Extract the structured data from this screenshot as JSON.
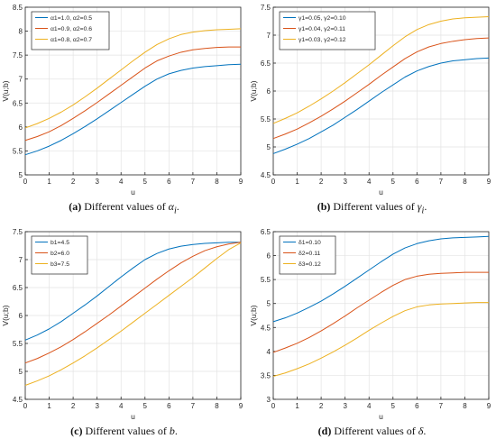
{
  "colors": {
    "blue": "#0072BD",
    "orange": "#D95319",
    "yellow": "#EDB120"
  },
  "panels": [
    {
      "caption": {
        "letter": "a",
        "text": "Different values of ",
        "symbol": "α",
        "sub": "i"
      }
    },
    {
      "caption": {
        "letter": "b",
        "text": "Different values of ",
        "symbol": "γ",
        "sub": "i"
      }
    },
    {
      "caption": {
        "letter": "c",
        "text": "Different values of ",
        "symbol": "b",
        "sub": ""
      }
    },
    {
      "caption": {
        "letter": "d",
        "text": "Different values of ",
        "symbol": "δ",
        "sub": ""
      }
    }
  ],
  "chart_data": [
    {
      "type": "line",
      "xlabel": "u",
      "ylabel": "V(u;b)",
      "xlim": [
        0,
        9
      ],
      "ylim": [
        5,
        8.5
      ],
      "xticks": [
        0,
        1,
        2,
        3,
        4,
        5,
        6,
        7,
        8,
        9
      ],
      "yticks": [
        5,
        5.5,
        6,
        6.5,
        7,
        7.5,
        8,
        8.5
      ],
      "grid": true,
      "legend_position": "top-left",
      "x": [
        0,
        0.5,
        1,
        1.5,
        2,
        2.5,
        3,
        3.5,
        4,
        4.5,
        5,
        5.5,
        6,
        6.5,
        7,
        7.5,
        8,
        8.5,
        9
      ],
      "series": [
        {
          "name": "α1=1.0, α2=0.5",
          "color": "blue",
          "values": [
            5.42,
            5.5,
            5.6,
            5.72,
            5.86,
            6.01,
            6.17,
            6.34,
            6.51,
            6.68,
            6.85,
            7.0,
            7.11,
            7.18,
            7.23,
            7.26,
            7.28,
            7.3,
            7.31
          ]
        },
        {
          "name": "α1=0.9, α2=0.6",
          "color": "orange",
          "values": [
            5.72,
            5.8,
            5.9,
            6.03,
            6.18,
            6.34,
            6.51,
            6.69,
            6.87,
            7.05,
            7.23,
            7.38,
            7.48,
            7.56,
            7.61,
            7.64,
            7.66,
            7.67,
            7.67
          ]
        },
        {
          "name": "α1=0.8, α2=0.7",
          "color": "yellow",
          "values": [
            5.98,
            6.07,
            6.18,
            6.31,
            6.46,
            6.63,
            6.81,
            7.0,
            7.19,
            7.38,
            7.56,
            7.72,
            7.84,
            7.93,
            7.98,
            8.01,
            8.03,
            8.04,
            8.05
          ]
        }
      ]
    },
    {
      "type": "line",
      "xlabel": "u",
      "ylabel": "V(u;b)",
      "xlim": [
        0,
        9
      ],
      "ylim": [
        4.5,
        7.5
      ],
      "xticks": [
        0,
        1,
        2,
        3,
        4,
        5,
        6,
        7,
        8,
        9
      ],
      "yticks": [
        4.5,
        5,
        5.5,
        6,
        6.5,
        7,
        7.5
      ],
      "grid": true,
      "legend_position": "top-left",
      "x": [
        0,
        0.5,
        1,
        1.5,
        2,
        2.5,
        3,
        3.5,
        4,
        4.5,
        5,
        5.5,
        6,
        6.5,
        7,
        7.5,
        8,
        8.5,
        9
      ],
      "series": [
        {
          "name": "γ1=0.05, γ2=0.10",
          "color": "blue",
          "values": [
            4.88,
            4.96,
            5.05,
            5.15,
            5.27,
            5.39,
            5.53,
            5.67,
            5.82,
            5.97,
            6.11,
            6.25,
            6.36,
            6.44,
            6.5,
            6.54,
            6.56,
            6.58,
            6.59
          ]
        },
        {
          "name": "γ1=0.04, γ2=0.11",
          "color": "orange",
          "values": [
            5.15,
            5.23,
            5.32,
            5.43,
            5.55,
            5.68,
            5.82,
            5.97,
            6.12,
            6.28,
            6.43,
            6.58,
            6.7,
            6.79,
            6.85,
            6.89,
            6.92,
            6.94,
            6.95
          ]
        },
        {
          "name": "γ1=0.03, γ2=0.12",
          "color": "yellow",
          "values": [
            5.42,
            5.51,
            5.61,
            5.73,
            5.86,
            6.0,
            6.15,
            6.31,
            6.47,
            6.64,
            6.81,
            6.97,
            7.1,
            7.19,
            7.25,
            7.29,
            7.31,
            7.32,
            7.33
          ]
        }
      ]
    },
    {
      "type": "line",
      "xlabel": "u",
      "ylabel": "V(u;b)",
      "xlim": [
        0,
        9
      ],
      "ylim": [
        4.5,
        7.5
      ],
      "xticks": [
        0,
        1,
        2,
        3,
        4,
        5,
        6,
        7,
        8,
        9
      ],
      "yticks": [
        4.5,
        5,
        5.5,
        6,
        6.5,
        7,
        7.5
      ],
      "grid": true,
      "legend_position": "top-left",
      "x": [
        0,
        0.5,
        1,
        1.5,
        2,
        2.5,
        3,
        3.5,
        4,
        4.5,
        5,
        5.5,
        6,
        6.5,
        7,
        7.5,
        8,
        8.5,
        9
      ],
      "series": [
        {
          "name": "b1=4.5",
          "color": "blue",
          "values": [
            5.56,
            5.65,
            5.76,
            5.89,
            6.04,
            6.19,
            6.35,
            6.52,
            6.69,
            6.85,
            7.0,
            7.11,
            7.19,
            7.24,
            7.27,
            7.29,
            7.3,
            7.31,
            7.31
          ]
        },
        {
          "name": "b2=6.0",
          "color": "orange",
          "values": [
            5.15,
            5.23,
            5.33,
            5.44,
            5.57,
            5.71,
            5.86,
            6.01,
            6.17,
            6.33,
            6.49,
            6.65,
            6.8,
            6.94,
            7.06,
            7.16,
            7.23,
            7.28,
            7.31
          ]
        },
        {
          "name": "b3=7.5",
          "color": "yellow",
          "values": [
            4.75,
            4.83,
            4.92,
            5.03,
            5.15,
            5.28,
            5.42,
            5.57,
            5.72,
            5.88,
            6.04,
            6.2,
            6.36,
            6.52,
            6.68,
            6.85,
            7.02,
            7.18,
            7.3
          ]
        }
      ]
    },
    {
      "type": "line",
      "xlabel": "u",
      "ylabel": "V(u;b)",
      "xlim": [
        0,
        9
      ],
      "ylim": [
        3,
        6.5
      ],
      "xticks": [
        0,
        1,
        2,
        3,
        4,
        5,
        6,
        7,
        8,
        9
      ],
      "yticks": [
        3,
        3.5,
        4,
        4.5,
        5,
        5.5,
        6,
        6.5
      ],
      "grid": true,
      "legend_position": "top-left",
      "x": [
        0,
        0.5,
        1,
        1.5,
        2,
        2.5,
        3,
        3.5,
        4,
        4.5,
        5,
        5.5,
        6,
        6.5,
        7,
        7.5,
        8,
        8.5,
        9
      ],
      "series": [
        {
          "name": "δ1=0.10",
          "color": "blue",
          "values": [
            4.62,
            4.7,
            4.8,
            4.92,
            5.05,
            5.2,
            5.36,
            5.53,
            5.7,
            5.87,
            6.03,
            6.16,
            6.25,
            6.31,
            6.35,
            6.37,
            6.38,
            6.39,
            6.4
          ]
        },
        {
          "name": "δ2=0.11",
          "color": "orange",
          "values": [
            3.98,
            4.07,
            4.17,
            4.29,
            4.43,
            4.58,
            4.74,
            4.91,
            5.07,
            5.23,
            5.38,
            5.5,
            5.57,
            5.61,
            5.63,
            5.64,
            5.65,
            5.65,
            5.65
          ]
        },
        {
          "name": "δ3=0.12",
          "color": "yellow",
          "values": [
            3.48,
            3.55,
            3.64,
            3.74,
            3.86,
            3.99,
            4.13,
            4.28,
            4.44,
            4.59,
            4.73,
            4.85,
            4.93,
            4.97,
            4.99,
            5.0,
            5.01,
            5.02,
            5.02
          ]
        }
      ]
    }
  ]
}
